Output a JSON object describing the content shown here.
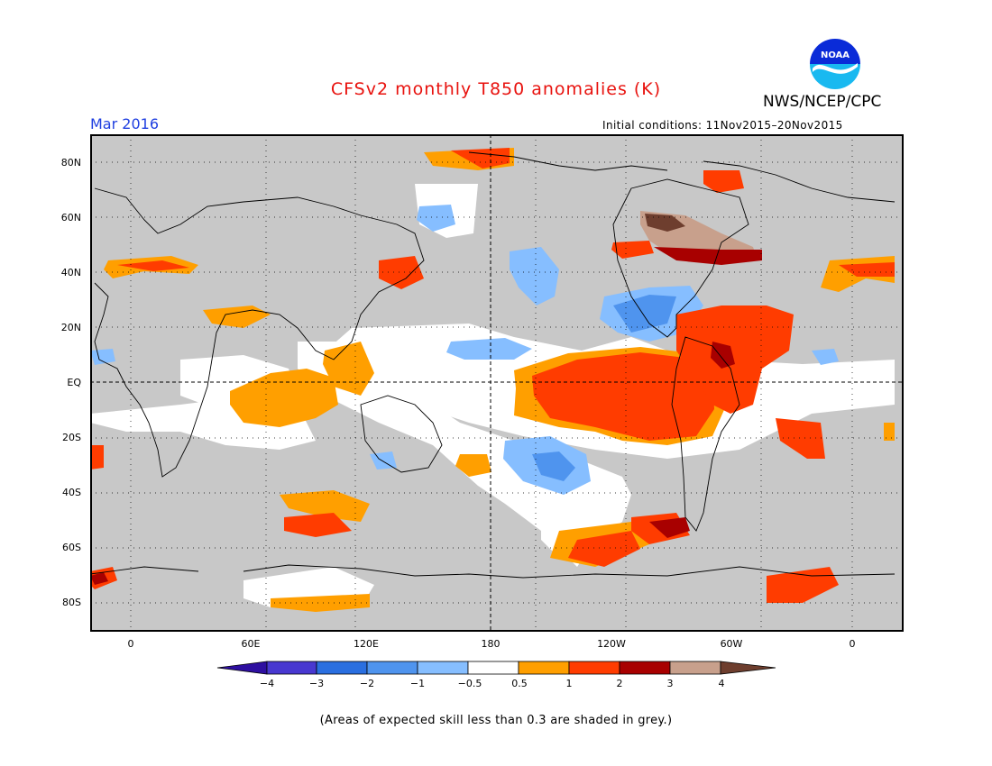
{
  "header": {
    "title": "CFSv2 monthly T850 anomalies (K)",
    "agency": "NWS/NCEP/CPC",
    "month": "Mar 2016",
    "initial_conditions": "Initial conditions: 11Nov2015–20Nov2015",
    "logo_text": "NOAA"
  },
  "map": {
    "lat_labels": [
      "80N",
      "60N",
      "40N",
      "20N",
      "EQ",
      "20S",
      "40S",
      "60S",
      "80S"
    ],
    "lon_labels": [
      "0",
      "60E",
      "120E",
      "180",
      "120W",
      "60W",
      "0"
    ],
    "land_color": "#c8c8c8"
  },
  "colorbar": {
    "ticks": [
      "−4",
      "−3",
      "−2",
      "−1",
      "−0.5",
      "0.5",
      "1",
      "2",
      "3",
      "4"
    ],
    "colors": [
      "#2e0fa0",
      "#4838d0",
      "#2a6fe0",
      "#4f94ee",
      "#86beff",
      "#ffffff",
      "#ff9f00",
      "#ff3c00",
      "#a80000",
      "#c8a08c",
      "#6e3e2e"
    ]
  },
  "footer": {
    "note": "(Areas of expected skill less than 0.3 are shaded in grey.)"
  }
}
